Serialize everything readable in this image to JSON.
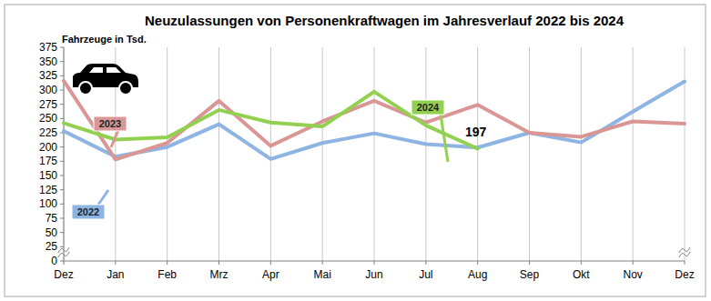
{
  "chart_data": {
    "type": "line",
    "title": "Neuzulassungen von Personenkraftwagen im Jahresverlauf 2022 bis 2024",
    "y_label": "Fahrzeuge in Tsd.",
    "categories": [
      "Dez",
      "Jan",
      "Feb",
      "Mrz",
      "Apr",
      "Mai",
      "Jun",
      "Jul",
      "Aug",
      "Sep",
      "Okt",
      "Nov",
      "Dez"
    ],
    "series": [
      {
        "name": "2022",
        "color": "#8db4e2",
        "values": [
          228,
          183,
          200,
          240,
          179,
          207,
          224,
          205,
          199,
          225,
          208,
          262,
          315
        ]
      },
      {
        "name": "2023",
        "color": "#d99694",
        "values": [
          316,
          178,
          207,
          281,
          202,
          245,
          281,
          243,
          274,
          225,
          218,
          245,
          241
        ]
      },
      {
        "name": "2024",
        "color": "#92d050",
        "values": [
          242,
          213,
          217,
          265,
          243,
          236,
          297,
          238,
          197,
          null,
          null,
          null,
          null
        ]
      }
    ],
    "annotations": [
      {
        "text": "197"
      }
    ],
    "ylim": [
      0,
      375
    ],
    "yticks": [
      0,
      25,
      50,
      75,
      100,
      125,
      150,
      175,
      200,
      225,
      250,
      275,
      300,
      325,
      350,
      375
    ],
    "grid": true
  }
}
